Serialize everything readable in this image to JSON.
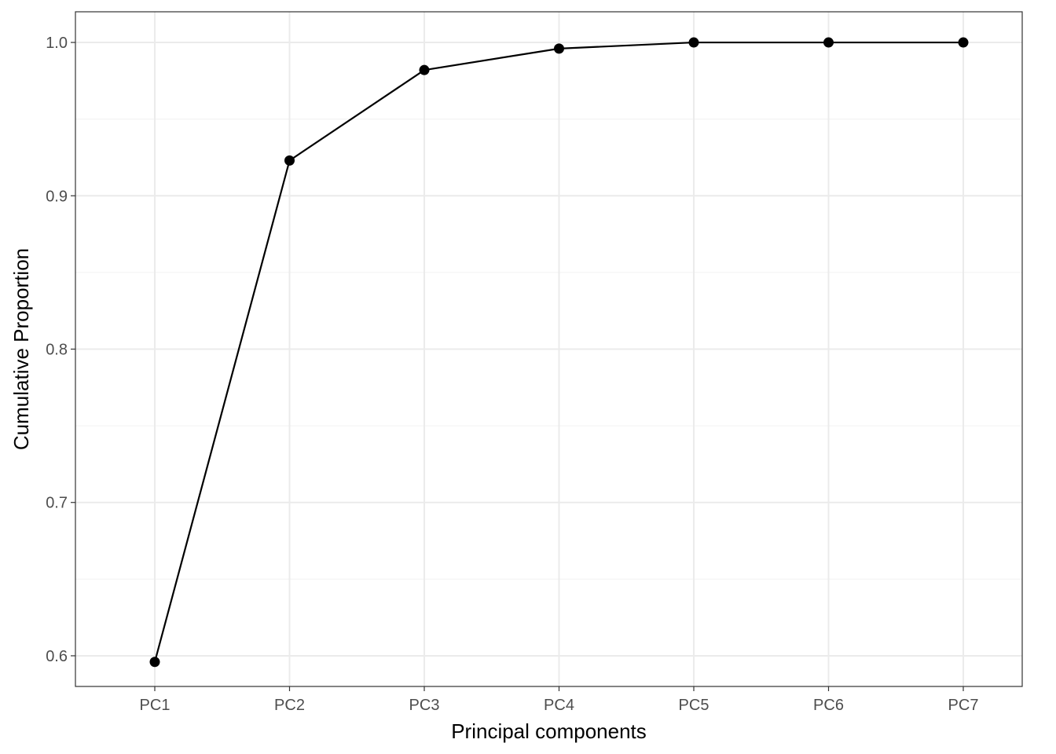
{
  "chart_data": {
    "type": "line",
    "title": "",
    "xlabel": "Principal components",
    "ylabel": "Cumulative Proportion",
    "categories": [
      "PC1",
      "PC2",
      "PC3",
      "PC4",
      "PC5",
      "PC6",
      "PC7"
    ],
    "series": [
      {
        "values": [
          0.596,
          0.923,
          0.982,
          0.996,
          1.0,
          1.0,
          1.0
        ]
      }
    ],
    "ylim": [
      0.58,
      1.02
    ],
    "yticks": [
      0.6,
      0.7,
      0.8,
      0.9,
      1.0
    ],
    "ytick_labels": [
      "0.6",
      "0.7",
      "0.8",
      "0.9",
      "1.0"
    ],
    "grid": true,
    "legend": "none",
    "colors": {
      "line": "#000000",
      "point": "#000000",
      "grid_major": "#ebebeb",
      "grid_minor": "#f2f2f2",
      "panel_border": "#333333",
      "tick_text": "#4d4d4d"
    }
  }
}
